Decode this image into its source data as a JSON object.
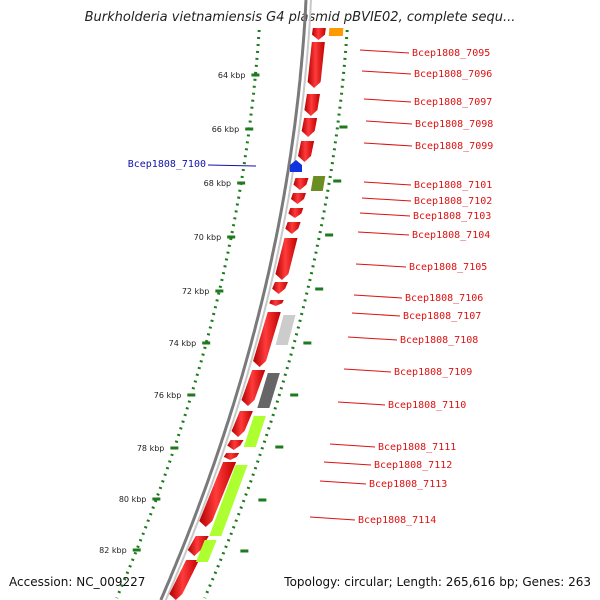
{
  "title": "Burkholderia vietnamiensis G4 plasmid pBVIE02, complete sequ...",
  "footer": {
    "accession": "Accession: NC_009227",
    "summary": "Topology: circular; Length: 265,616 bp; Genes: 263"
  },
  "ruler_labels": [
    "64 kbp",
    "66 kbp",
    "68 kbp",
    "70 kbp",
    "72 kbp",
    "74 kbp",
    "76 kbp",
    "78 kbp",
    "80 kbp",
    "82 kbp"
  ],
  "genes_right": [
    "Bcep1808_7095",
    "Bcep1808_7096",
    "Bcep1808_7097",
    "Bcep1808_7098",
    "Bcep1808_7099",
    "Bcep1808_7101",
    "Bcep1808_7102",
    "Bcep1808_7103",
    "Bcep1808_7104",
    "Bcep1808_7105",
    "Bcep1808_7106",
    "Bcep1808_7107",
    "Bcep1808_7108",
    "Bcep1808_7109",
    "Bcep1808_7110",
    "Bcep1808_7111",
    "Bcep1808_7112",
    "Bcep1808_7113",
    "Bcep1808_7114"
  ],
  "genes_left": [
    "Bcep1808_7100"
  ],
  "colors": {
    "gene_red": "#ee1111",
    "gene_blue": "#1133dd",
    "label_red": "#dd1111",
    "label_blue": "#1111aa",
    "ruler_green": "#1e7a1e",
    "backbone_gray": "#888888",
    "cog_orange": "#ff9900",
    "cog_olive": "#6b8e23",
    "cog_lightgray": "#cccccc",
    "cog_darkgray": "#666666",
    "cog_lime": "#adff2f"
  }
}
